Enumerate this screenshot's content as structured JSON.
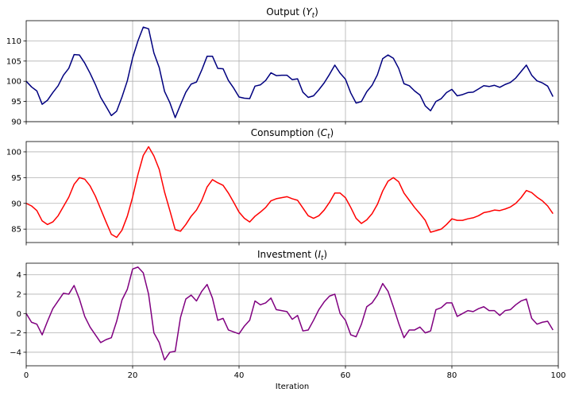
{
  "chart_data": [
    {
      "type": "line",
      "title_text": "Output (",
      "title_sym": "Y",
      "title_sub": "t",
      "title_close": ")",
      "xlim": [
        0,
        100
      ],
      "ylim": [
        90,
        115
      ],
      "yticks": [
        90,
        95,
        100,
        105,
        110
      ],
      "xticks": [
        0,
        20,
        40,
        60,
        80,
        100
      ],
      "color": "#00007f",
      "grid": true,
      "x": [
        0,
        1,
        2,
        3,
        4,
        5,
        6,
        7,
        8,
        9,
        10,
        11,
        12,
        13,
        14,
        15,
        16,
        17,
        18,
        19,
        20,
        21,
        22,
        23,
        24,
        25,
        26,
        27,
        28,
        29,
        30,
        31,
        32,
        33,
        34,
        35,
        36,
        37,
        38,
        39,
        40,
        41,
        42,
        43,
        44,
        45,
        46,
        47,
        48,
        49,
        50,
        51,
        52,
        53,
        54,
        55,
        56,
        57,
        58,
        59,
        60,
        61,
        62,
        63,
        64,
        65,
        66,
        67,
        68,
        69,
        70,
        71,
        72,
        73,
        74,
        75,
        76,
        77,
        78,
        79,
        80,
        81,
        82,
        83,
        84,
        85,
        86,
        87,
        88,
        89,
        90,
        91,
        92,
        93,
        94,
        95,
        96,
        97,
        98,
        99
      ],
      "values": [
        100.0,
        98.6,
        97.6,
        94.3,
        95.3,
        97.2,
        98.9,
        101.5,
        103.2,
        106.6,
        106.5,
        104.5,
        102.0,
        99.2,
        96.0,
        93.8,
        91.5,
        92.6,
        96.1,
        100.1,
        105.8,
        110.0,
        113.4,
        113.0,
        107.0,
        103.4,
        97.5,
        94.7,
        91.0,
        94.2,
        97.3,
        99.3,
        99.8,
        102.8,
        106.2,
        106.2,
        103.2,
        103.1,
        100.2,
        98.3,
        96.1,
        95.8,
        95.7,
        98.8,
        99.1,
        100.2,
        102.1,
        101.4,
        101.5,
        101.5,
        100.4,
        100.6,
        97.3,
        96.0,
        96.4,
        97.9,
        99.6,
        101.7,
        104.0,
        102.0,
        100.5,
        97.1,
        94.6,
        95.0,
        97.4,
        99.0,
        101.6,
        105.6,
        106.5,
        105.7,
        103.2,
        99.4,
        98.9,
        97.6,
        96.6,
        93.9,
        92.7,
        95.0,
        95.7,
        97.2,
        98.0,
        96.4,
        96.7,
        97.2,
        97.3,
        98.1,
        98.9,
        98.7,
        99.0,
        98.5,
        99.2,
        99.7,
        100.8,
        102.4,
        104.0,
        101.5,
        100.1,
        99.6,
        98.8,
        96.2
      ]
    },
    {
      "type": "line",
      "title_text": "Consumption (",
      "title_sym": "C",
      "title_sub": "t",
      "title_close": ")",
      "xlim": [
        0,
        100
      ],
      "ylim": [
        82.4,
        102
      ],
      "yticks": [
        85,
        90,
        95,
        100
      ],
      "xticks": [
        0,
        20,
        40,
        60,
        80,
        100
      ],
      "color": "#ff0000",
      "grid": true,
      "x": [
        0,
        1,
        2,
        3,
        4,
        5,
        6,
        7,
        8,
        9,
        10,
        11,
        12,
        13,
        14,
        15,
        16,
        17,
        18,
        19,
        20,
        21,
        22,
        23,
        24,
        25,
        26,
        27,
        28,
        29,
        30,
        31,
        32,
        33,
        34,
        35,
        36,
        37,
        38,
        39,
        40,
        41,
        42,
        43,
        44,
        45,
        46,
        47,
        48,
        49,
        50,
        51,
        52,
        53,
        54,
        55,
        56,
        57,
        58,
        59,
        60,
        61,
        62,
        63,
        64,
        65,
        66,
        67,
        68,
        69,
        70,
        71,
        72,
        73,
        74,
        75,
        76,
        77,
        78,
        79,
        80,
        81,
        82,
        83,
        84,
        85,
        86,
        87,
        88,
        89,
        90,
        91,
        92,
        93,
        94,
        95,
        96,
        97,
        98,
        99
      ],
      "values": [
        90.0,
        89.5,
        88.6,
        86.6,
        85.9,
        86.4,
        87.6,
        89.4,
        91.2,
        93.7,
        95.0,
        94.7,
        93.4,
        91.4,
        88.9,
        86.4,
        84.0,
        83.4,
        84.8,
        87.5,
        91.2,
        95.6,
        99.3,
        101.0,
        99.2,
        96.6,
        92.2,
        88.6,
        84.9,
        84.6,
        85.9,
        87.5,
        88.7,
        90.6,
        93.2,
        94.6,
        94.0,
        93.5,
        92.0,
        90.2,
        88.3,
        87.1,
        86.4,
        87.5,
        88.3,
        89.2,
        90.5,
        90.9,
        91.1,
        91.3,
        90.9,
        90.6,
        89.1,
        87.6,
        87.1,
        87.6,
        88.7,
        90.2,
        92.0,
        92.0,
        91.1,
        89.2,
        87.1,
        86.1,
        86.8,
        88.0,
        89.8,
        92.4,
        94.3,
        95.0,
        94.2,
        92.0,
        90.6,
        89.2,
        88.0,
        86.7,
        84.4,
        84.7,
        85.0,
        85.9,
        87.0,
        86.7,
        86.7,
        87.0,
        87.2,
        87.6,
        88.2,
        88.4,
        88.7,
        88.6,
        88.9,
        89.3,
        90.0,
        91.1,
        92.5,
        92.1,
        91.2,
        90.5,
        89.5,
        88.0
      ]
    },
    {
      "type": "line",
      "title_text": "Investment (",
      "title_sym": "I",
      "title_sub": "t",
      "title_close": ")",
      "xlim": [
        0,
        100
      ],
      "ylim": [
        -5.4,
        5.2
      ],
      "yticks": [
        -4,
        -2,
        0,
        2,
        4
      ],
      "xticks": [
        0,
        20,
        40,
        60,
        80,
        100
      ],
      "xlabel": "Iteration",
      "color": "#800080",
      "grid": true,
      "x": [
        0,
        1,
        2,
        3,
        4,
        5,
        6,
        7,
        8,
        9,
        10,
        11,
        12,
        13,
        14,
        15,
        16,
        17,
        18,
        19,
        20,
        21,
        22,
        23,
        24,
        25,
        26,
        27,
        28,
        29,
        30,
        31,
        32,
        33,
        34,
        35,
        36,
        37,
        38,
        39,
        40,
        41,
        42,
        43,
        44,
        45,
        46,
        47,
        48,
        49,
        50,
        51,
        52,
        53,
        54,
        55,
        56,
        57,
        58,
        59,
        60,
        61,
        62,
        63,
        64,
        65,
        66,
        67,
        68,
        69,
        70,
        71,
        72,
        73,
        74,
        75,
        76,
        77,
        78,
        79,
        80,
        81,
        82,
        83,
        84,
        85,
        86,
        87,
        88,
        89,
        90,
        91,
        92,
        93,
        94,
        95,
        96,
        97,
        98,
        99
      ],
      "values": [
        0.0,
        -0.9,
        -1.1,
        -2.2,
        -0.8,
        0.5,
        1.3,
        2.1,
        2.0,
        2.9,
        1.5,
        -0.3,
        -1.4,
        -2.2,
        -3.0,
        -2.7,
        -2.5,
        -0.8,
        1.4,
        2.5,
        4.6,
        4.8,
        4.2,
        2.0,
        -2.0,
        -3.0,
        -4.8,
        -4.0,
        -3.9,
        -0.4,
        1.5,
        1.9,
        1.3,
        2.3,
        3.0,
        1.6,
        -0.7,
        -0.5,
        -1.7,
        -1.9,
        -2.1,
        -1.3,
        -0.7,
        1.3,
        0.9,
        1.1,
        1.6,
        0.4,
        0.3,
        0.2,
        -0.6,
        -0.2,
        -1.8,
        -1.7,
        -0.7,
        0.4,
        1.2,
        1.8,
        2.0,
        0.0,
        -0.7,
        -2.2,
        -2.4,
        -1.1,
        0.7,
        1.1,
        1.9,
        3.1,
        2.3,
        0.7,
        -1.0,
        -2.5,
        -1.7,
        -1.7,
        -1.4,
        -2.0,
        -1.8,
        0.4,
        0.6,
        1.1,
        1.1,
        -0.3,
        0.0,
        0.3,
        0.2,
        0.5,
        0.7,
        0.3,
        0.3,
        -0.2,
        0.3,
        0.4,
        0.9,
        1.3,
        1.5,
        -0.5,
        -1.1,
        -0.9,
        -0.8,
        -1.7
      ]
    }
  ]
}
